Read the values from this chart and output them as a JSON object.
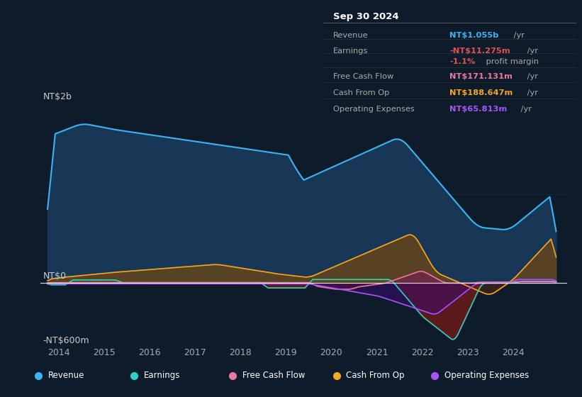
{
  "bg_color": "#0d1b2a",
  "y_label_top": "NT$2b",
  "y_label_mid": "NT$0",
  "y_label_bot": "-NT$600m",
  "info_box": {
    "date": "Sep 30 2024",
    "rows": [
      {
        "label": "Revenue",
        "value": "NT$1.055b",
        "suffix": " /yr",
        "color": "#3ab4f2"
      },
      {
        "label": "Earnings",
        "value": "-NT$11.275m",
        "suffix": " /yr",
        "color": "#e05252"
      },
      {
        "label": "",
        "value": "-1.1%",
        "suffix": " profit margin",
        "color": "#e05252"
      },
      {
        "label": "Free Cash Flow",
        "value": "NT$171.131m",
        "suffix": " /yr",
        "color": "#e879a0"
      },
      {
        "label": "Cash From Op",
        "value": "NT$188.647m",
        "suffix": " /yr",
        "color": "#f5a623"
      },
      {
        "label": "Operating Expenses",
        "value": "NT$65.813m",
        "suffix": " /yr",
        "color": "#a855f7"
      }
    ]
  },
  "legend": [
    {
      "label": "Revenue",
      "color": "#3ab4f2"
    },
    {
      "label": "Earnings",
      "color": "#2dd4bf"
    },
    {
      "label": "Free Cash Flow",
      "color": "#e879a0"
    },
    {
      "label": "Cash From Op",
      "color": "#f5a623"
    },
    {
      "label": "Operating Expenses",
      "color": "#a855f7"
    }
  ],
  "revenue_color": "#3ab4f2",
  "earnings_color": "#2dd4bf",
  "fcf_color": "#e879a0",
  "cashop_color": "#f5a623",
  "opex_color": "#a855f7"
}
